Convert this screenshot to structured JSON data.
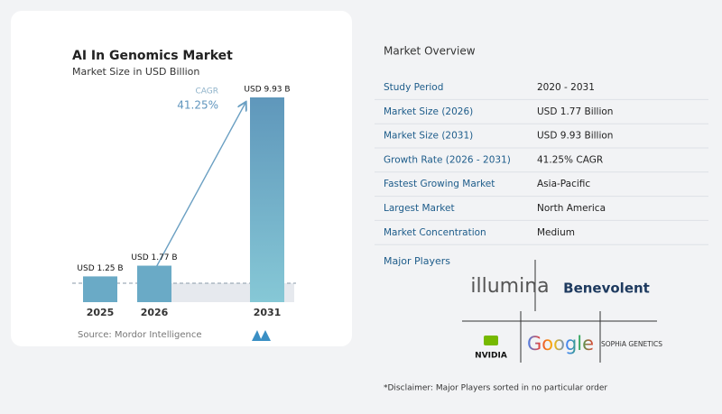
{
  "chart_data": {
    "type": "bar",
    "title": "AI In Genomics Market",
    "subtitle": "Market Size in USD Billion",
    "categories": [
      "2025",
      "2026",
      "2031"
    ],
    "values": [
      1.25,
      1.77,
      9.93
    ],
    "value_labels": [
      "USD 1.25 B",
      "USD 1.77 B",
      "USD 9.93 B"
    ],
    "color": "#6aaac6",
    "annotation": {
      "label": "CAGR",
      "value": "41.25%"
    },
    "source": "Source: Mordor Intelligence"
  },
  "overview": {
    "title": "Market Overview",
    "rows": [
      [
        "Study Period",
        "2020 - 2031"
      ],
      [
        "Market Size (2026)",
        "USD 1.77 Billion"
      ],
      [
        "Market Size (2031)",
        "USD 9.93 Billion"
      ],
      [
        "Growth Rate (2026 - 2031)",
        "41.25% CAGR"
      ],
      [
        "Fastest Growing Market",
        "Asia-Pacific"
      ],
      [
        "Largest Market",
        "North America"
      ],
      [
        "Market Concentration",
        "Medium"
      ]
    ]
  },
  "players": {
    "title": "Major Players",
    "names": [
      "illumina",
      "Benevolent",
      "NVIDIA",
      "Google",
      "SOPHiA GENETICS"
    ]
  },
  "disclaimer": "*Disclaimer: Major Players sorted in no particular order"
}
